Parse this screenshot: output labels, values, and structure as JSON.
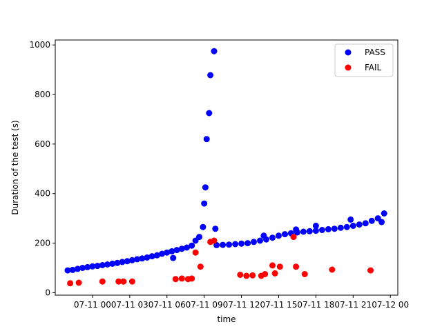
{
  "chart_data": {
    "type": "scatter",
    "xlabel": "time",
    "ylabel": "Duration of the test (s)",
    "x_unit": "hours since 07-11 00:00",
    "xlim": [
      -3.0,
      24.6
    ],
    "ylim": [
      -10,
      1020
    ],
    "x_ticks": [
      {
        "value": 0,
        "label": "07-11 00"
      },
      {
        "value": 3,
        "label": "07-11 03"
      },
      {
        "value": 6,
        "label": "07-11 06"
      },
      {
        "value": 9,
        "label": "07-11 09"
      },
      {
        "value": 12,
        "label": "07-11 12"
      },
      {
        "value": 15,
        "label": "07-11 15"
      },
      {
        "value": 18,
        "label": "07-11 18"
      },
      {
        "value": 21,
        "label": "07-11 21"
      },
      {
        "value": 24,
        "label": "07-12 00"
      }
    ],
    "y_ticks": [
      0,
      200,
      400,
      600,
      800,
      1000
    ],
    "legend_position": "top-right",
    "series": [
      {
        "name": "PASS",
        "color": "#0000ff",
        "points": [
          [
            -2.0,
            90
          ],
          [
            -1.6,
            92
          ],
          [
            -1.2,
            96
          ],
          [
            -0.8,
            100
          ],
          [
            -0.4,
            103
          ],
          [
            0.0,
            106
          ],
          [
            0.4,
            108
          ],
          [
            0.8,
            111
          ],
          [
            1.2,
            114
          ],
          [
            1.6,
            117
          ],
          [
            2.0,
            120
          ],
          [
            2.4,
            124
          ],
          [
            2.8,
            127
          ],
          [
            3.2,
            131
          ],
          [
            3.6,
            135
          ],
          [
            4.0,
            138
          ],
          [
            4.4,
            142
          ],
          [
            4.8,
            147
          ],
          [
            5.2,
            151
          ],
          [
            5.6,
            157
          ],
          [
            6.0,
            162
          ],
          [
            6.4,
            167
          ],
          [
            6.8,
            172
          ],
          [
            7.2,
            177
          ],
          [
            7.6,
            182
          ],
          [
            8.0,
            190
          ],
          [
            8.3,
            210
          ],
          [
            8.6,
            225
          ],
          [
            8.9,
            265
          ],
          [
            9.0,
            360
          ],
          [
            9.1,
            425
          ],
          [
            9.2,
            620
          ],
          [
            9.4,
            725
          ],
          [
            9.5,
            878
          ],
          [
            9.8,
            975
          ],
          [
            10.0,
            192
          ],
          [
            10.5,
            193
          ],
          [
            11.0,
            194
          ],
          [
            11.5,
            196
          ],
          [
            12.0,
            198
          ],
          [
            12.5,
            200
          ],
          [
            13.0,
            205
          ],
          [
            13.5,
            210
          ],
          [
            14.0,
            215
          ],
          [
            14.5,
            222
          ],
          [
            15.0,
            230
          ],
          [
            15.5,
            236
          ],
          [
            16.0,
            240
          ],
          [
            16.5,
            243
          ],
          [
            17.0,
            246
          ],
          [
            17.5,
            248
          ],
          [
            18.0,
            250
          ],
          [
            18.5,
            253
          ],
          [
            19.0,
            256
          ],
          [
            19.5,
            258
          ],
          [
            20.0,
            262
          ],
          [
            20.5,
            265
          ],
          [
            21.0,
            270
          ],
          [
            21.5,
            275
          ],
          [
            22.0,
            280
          ],
          [
            22.5,
            290
          ],
          [
            23.0,
            300
          ],
          [
            23.3,
            285
          ],
          [
            23.5,
            320
          ],
          [
            6.5,
            140
          ],
          [
            9.9,
            258
          ],
          [
            18.0,
            270
          ],
          [
            20.8,
            295
          ],
          [
            16.4,
            255
          ],
          [
            13.8,
            230
          ]
        ]
      },
      {
        "name": "FAIL",
        "color": "#ff0000",
        "points": [
          [
            -1.8,
            38
          ],
          [
            -1.1,
            40
          ],
          [
            0.8,
            45
          ],
          [
            2.1,
            45
          ],
          [
            2.5,
            45
          ],
          [
            3.2,
            45
          ],
          [
            6.7,
            55
          ],
          [
            7.2,
            57
          ],
          [
            7.7,
            55
          ],
          [
            8.0,
            57
          ],
          [
            8.3,
            162
          ],
          [
            8.7,
            105
          ],
          [
            9.5,
            205
          ],
          [
            9.8,
            210
          ],
          [
            11.9,
            72
          ],
          [
            12.4,
            68
          ],
          [
            12.9,
            70
          ],
          [
            13.6,
            68
          ],
          [
            13.9,
            75
          ],
          [
            14.5,
            110
          ],
          [
            14.7,
            78
          ],
          [
            15.1,
            105
          ],
          [
            16.2,
            225
          ],
          [
            16.4,
            105
          ],
          [
            17.1,
            75
          ],
          [
            19.3,
            93
          ],
          [
            22.4,
            90
          ]
        ]
      }
    ]
  }
}
